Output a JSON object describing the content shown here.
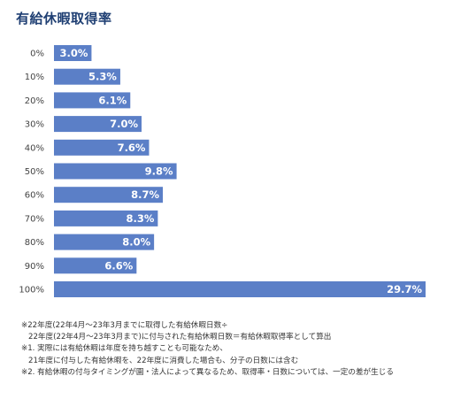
{
  "header": {
    "title": "有給休暇取得率"
  },
  "chart_data": {
    "type": "bar",
    "orientation": "horizontal",
    "title": "有給休暇取得率",
    "categories": [
      "0%",
      "10%",
      "20%",
      "30%",
      "40%",
      "50%",
      "60%",
      "70%",
      "80%",
      "90%",
      "100%"
    ],
    "values": [
      3.0,
      5.3,
      6.1,
      7.0,
      7.6,
      9.8,
      8.7,
      8.3,
      8.0,
      6.6,
      29.7
    ],
    "value_labels": [
      "3.0%",
      "5.3%",
      "6.1%",
      "7.0%",
      "7.6%",
      "9.8%",
      "8.7%",
      "8.3%",
      "8.0%",
      "6.6%",
      "29.7%"
    ],
    "xlim": [
      0,
      29.7
    ],
    "grid": false,
    "bar_color": "#5b7fc7"
  },
  "notes": [
    "※22年度(22年4月～23年3月までに取得した有給休暇日数÷",
    "22年度(22年4月～23年3月まで)に付与された有給休暇日数＝有給休暇取得率として算出",
    "※1. 実際には有給休暇は年度を持ち越すことも可能なため、",
    "21年度に付与した有給休暇を、22年度に消費した場合も、分子の日数には含む",
    "※2. 有給休暇の付与タイミングが園・法人によって異なるため、取得率・日数については、一定の差が生じる"
  ]
}
